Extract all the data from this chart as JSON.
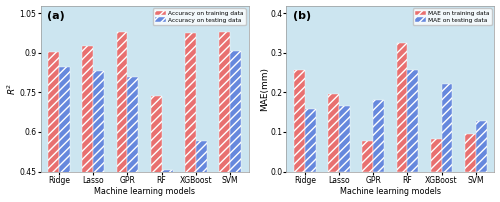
{
  "categories": [
    "Ridge",
    "Lasso",
    "GPR",
    "RF",
    "XGBoost",
    "SVM"
  ],
  "accuracy_train": [
    0.905,
    0.925,
    0.98,
    0.735,
    0.975,
    0.98
  ],
  "accuracy_test": [
    0.845,
    0.83,
    0.808,
    0.455,
    0.565,
    0.908
  ],
  "mae_train": [
    0.258,
    0.196,
    0.078,
    0.325,
    0.082,
    0.096
  ],
  "mae_test": [
    0.157,
    0.167,
    0.18,
    0.258,
    0.222,
    0.129
  ],
  "color_red": "#e87070",
  "color_blue": "#6688dd",
  "color_red_light": "#f0a0a0",
  "color_blue_light": "#99aaee",
  "background_color": "#cce5f0",
  "ylabel_a": "$R^2$",
  "ylabel_b": "MAE(mm)",
  "xlabel": "Machine learning models",
  "ylim_a": [
    0.45,
    1.08
  ],
  "ylim_b": [
    0.0,
    0.42
  ],
  "yticks_a": [
    0.45,
    0.6,
    0.75,
    0.9,
    1.05
  ],
  "yticks_b": [
    0.0,
    0.1,
    0.2,
    0.3,
    0.4
  ],
  "legend_a": [
    "Accuracy on training data",
    "Accuracy on testing data"
  ],
  "legend_b": [
    "MAE on training data",
    "MAE on testing data"
  ],
  "label_a": "(a)",
  "label_b": "(b)"
}
